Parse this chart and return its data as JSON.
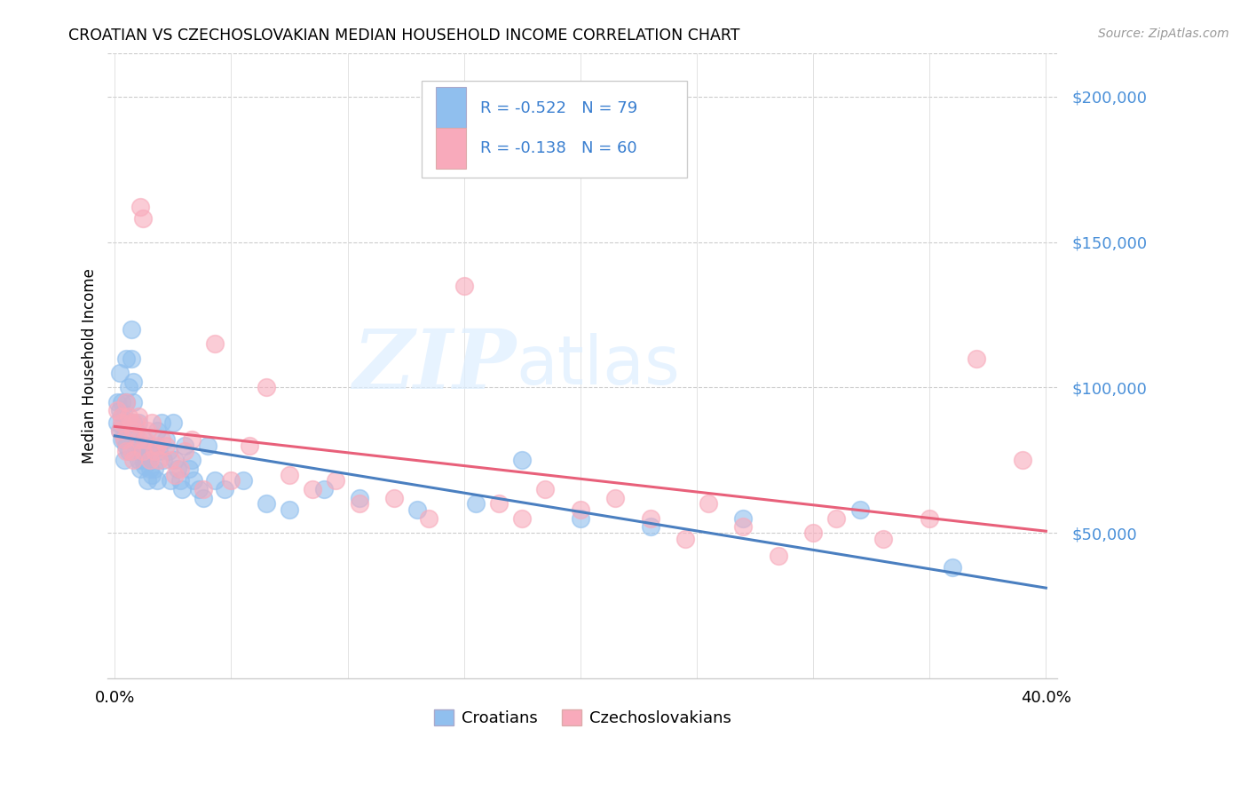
{
  "title": "CROATIAN VS CZECHOSLOVAKIAN MEDIAN HOUSEHOLD INCOME CORRELATION CHART",
  "source": "Source: ZipAtlas.com",
  "ylabel": "Median Household Income",
  "yticks": [
    0,
    50000,
    100000,
    150000,
    200000
  ],
  "ytick_labels": [
    "",
    "$50,000",
    "$100,000",
    "$150,000",
    "$200,000"
  ],
  "xticks": [
    0.0,
    0.05,
    0.1,
    0.15,
    0.2,
    0.25,
    0.3,
    0.35,
    0.4
  ],
  "xlim": [
    -0.003,
    0.405
  ],
  "ylim": [
    0,
    215000
  ],
  "legend_text_1": "R = -0.522   N = 79",
  "legend_text_2": "R = -0.138   N = 60",
  "color_croatian": "#90bfee",
  "color_czechoslovakian": "#f8aabb",
  "color_line_croatian": "#4a7fc0",
  "color_line_czechoslovakian": "#e8607a",
  "watermark_zip": "ZIP",
  "watermark_atlas": "atlas",
  "background_color": "#ffffff",
  "croatian_x": [
    0.001,
    0.001,
    0.002,
    0.002,
    0.002,
    0.003,
    0.003,
    0.003,
    0.003,
    0.004,
    0.004,
    0.004,
    0.004,
    0.005,
    0.005,
    0.005,
    0.005,
    0.006,
    0.006,
    0.006,
    0.007,
    0.007,
    0.007,
    0.008,
    0.008,
    0.008,
    0.009,
    0.009,
    0.01,
    0.01,
    0.01,
    0.011,
    0.011,
    0.012,
    0.012,
    0.013,
    0.013,
    0.014,
    0.014,
    0.015,
    0.015,
    0.016,
    0.016,
    0.017,
    0.018,
    0.018,
    0.019,
    0.02,
    0.021,
    0.022,
    0.023,
    0.024,
    0.025,
    0.026,
    0.027,
    0.028,
    0.029,
    0.03,
    0.032,
    0.033,
    0.034,
    0.036,
    0.038,
    0.04,
    0.043,
    0.047,
    0.055,
    0.065,
    0.075,
    0.09,
    0.105,
    0.13,
    0.155,
    0.175,
    0.2,
    0.23,
    0.27,
    0.32,
    0.36
  ],
  "croatian_y": [
    95000,
    88000,
    92000,
    85000,
    105000,
    90000,
    87000,
    95000,
    82000,
    88000,
    82000,
    90000,
    75000,
    110000,
    95000,
    88000,
    80000,
    100000,
    88000,
    78000,
    120000,
    110000,
    85000,
    95000,
    102000,
    88000,
    85000,
    78000,
    80000,
    75000,
    88000,
    78000,
    72000,
    75000,
    82000,
    80000,
    73000,
    75000,
    68000,
    80000,
    72000,
    78000,
    70000,
    72000,
    85000,
    68000,
    78000,
    88000,
    75000,
    82000,
    78000,
    68000,
    88000,
    75000,
    72000,
    68000,
    65000,
    80000,
    72000,
    75000,
    68000,
    65000,
    62000,
    80000,
    68000,
    65000,
    68000,
    60000,
    58000,
    65000,
    62000,
    58000,
    60000,
    75000,
    55000,
    52000,
    55000,
    58000,
    38000
  ],
  "czechoslovakian_x": [
    0.001,
    0.002,
    0.003,
    0.003,
    0.004,
    0.005,
    0.005,
    0.006,
    0.007,
    0.007,
    0.008,
    0.008,
    0.009,
    0.01,
    0.01,
    0.011,
    0.012,
    0.012,
    0.013,
    0.014,
    0.015,
    0.016,
    0.017,
    0.018,
    0.019,
    0.02,
    0.022,
    0.024,
    0.026,
    0.028,
    0.03,
    0.033,
    0.038,
    0.043,
    0.05,
    0.058,
    0.065,
    0.075,
    0.085,
    0.095,
    0.105,
    0.12,
    0.135,
    0.15,
    0.165,
    0.175,
    0.185,
    0.2,
    0.215,
    0.23,
    0.245,
    0.255,
    0.27,
    0.285,
    0.3,
    0.31,
    0.33,
    0.35,
    0.37,
    0.39
  ],
  "czechoslovakian_y": [
    92000,
    85000,
    88000,
    90000,
    82000,
    95000,
    78000,
    90000,
    78000,
    88000,
    85000,
    75000,
    88000,
    82000,
    90000,
    162000,
    158000,
    78000,
    82000,
    85000,
    75000,
    88000,
    78000,
    80000,
    75000,
    82000,
    80000,
    75000,
    70000,
    72000,
    78000,
    82000,
    65000,
    115000,
    68000,
    80000,
    100000,
    70000,
    65000,
    68000,
    60000,
    62000,
    55000,
    135000,
    60000,
    55000,
    65000,
    58000,
    62000,
    55000,
    48000,
    60000,
    52000,
    42000,
    50000,
    55000,
    48000,
    55000,
    110000,
    75000
  ]
}
